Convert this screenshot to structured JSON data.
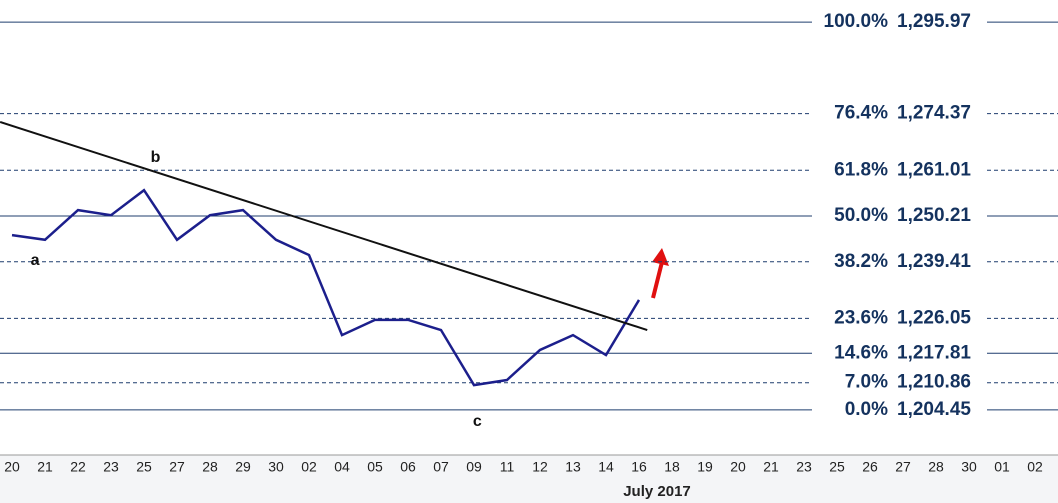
{
  "chart_data": {
    "type": "line",
    "x_label": "July 2017",
    "categories": [
      "20",
      "21",
      "22",
      "23",
      "25",
      "27",
      "28",
      "29",
      "30",
      "02",
      "04",
      "05",
      "06",
      "07",
      "09",
      "11",
      "12",
      "13",
      "14",
      "16",
      "18",
      "19",
      "20",
      "21",
      "23",
      "25",
      "26",
      "27",
      "28",
      "30",
      "01",
      "02"
    ],
    "series": [
      {
        "color": "#1c1f8c",
        "values": [
          1245.7,
          1244.6,
          1251.6,
          1250.4,
          1256.3,
          1244.6,
          1250.4,
          1251.6,
          1244.6,
          1241.0,
          1222.1,
          1225.7,
          1225.7,
          1223.3,
          1210.3,
          1211.5,
          1218.6,
          1222.1,
          1217.4,
          1230.4,
          null,
          null,
          null,
          null,
          null,
          null,
          null,
          null,
          null,
          null,
          null,
          null
        ]
      }
    ],
    "trendline": {
      "color": "#111111",
      "x": [
        -0.36,
        19.25
      ],
      "values": [
        1272.4,
        1223.3
      ]
    },
    "ylim": [
      1193.8,
      1301.2
    ],
    "levels": [
      {
        "percent": {
          "value": 100.0,
          "label": "100.0%"
        },
        "price": {
          "value": 1295.97,
          "label": "1,295.97"
        },
        "dashed": false
      },
      {
        "percent": {
          "value": 76.4,
          "label": "76.4%"
        },
        "price": {
          "value": 1274.37,
          "label": "1,274.37"
        },
        "dashed": true
      },
      {
        "percent": {
          "value": 61.8,
          "label": "61.8%"
        },
        "price": {
          "value": 1261.01,
          "label": "1,261.01"
        },
        "dashed": true
      },
      {
        "percent": {
          "value": 50.0,
          "label": "50.0%"
        },
        "price": {
          "value": 1250.21,
          "label": "1,250.21"
        },
        "dashed": false
      },
      {
        "percent": {
          "value": 38.2,
          "label": "38.2%"
        },
        "price": {
          "value": 1239.41,
          "label": "1,239.41"
        },
        "dashed": true
      },
      {
        "percent": {
          "value": 23.6,
          "label": "23.6%"
        },
        "price": {
          "value": 1226.05,
          "label": "1,226.05"
        },
        "dashed": true
      },
      {
        "percent": {
          "value": 14.6,
          "label": "14.6%"
        },
        "price": {
          "value": 1217.81,
          "label": "1,217.81"
        },
        "dashed": false
      },
      {
        "percent": {
          "value": 7.0,
          "label": "7.0%"
        },
        "price": {
          "value": 1210.86,
          "label": "1,210.86"
        },
        "dashed": true
      },
      {
        "percent": {
          "value": 0.0,
          "label": "0.0%"
        },
        "price": {
          "value": 1204.45,
          "label": "1,204.45"
        },
        "dashed": false
      }
    ],
    "annotations": [
      {
        "text": "a",
        "x": 0.7,
        "value": 1239.7
      },
      {
        "text": "b",
        "x": 4.35,
        "value": 1264.0
      },
      {
        "text": "c",
        "x": 14.1,
        "value": 1201.6
      }
    ]
  }
}
